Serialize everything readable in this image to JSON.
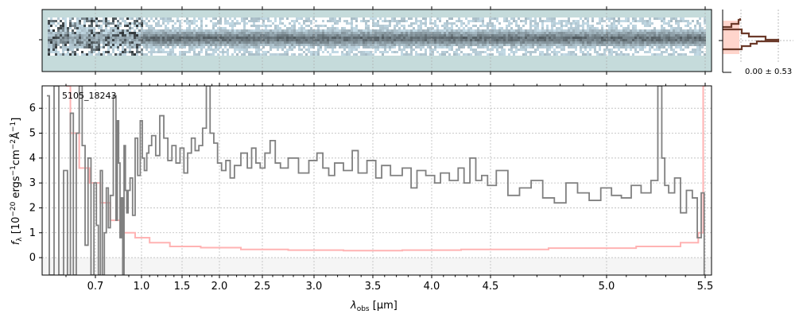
{
  "chart_data": {
    "type": "line",
    "object_label": "5105_18243",
    "xlabel": "λobs [μm]",
    "xlabel_main": "λ",
    "xlabel_sub": "obs",
    "xlabel_unit": " [μm]",
    "ylabel": "fλ [10^-20 ergs^-1 cm^-2 Å^-1]",
    "xlim": [
      0.55,
      5.52
    ],
    "ylim": [
      -0.7,
      6.9
    ],
    "grid": true,
    "x_ticks": [
      0.7,
      1.0,
      1.5,
      2.0,
      2.5,
      3.0,
      3.5,
      4.0,
      4.5,
      5.0,
      5.5
    ],
    "x_tick_labels": [
      "0.7",
      "1.0",
      "1.5",
      "2.0",
      "2.5",
      "3.0",
      "3.5",
      "4.0",
      "4.5",
      "5.0",
      "5.5"
    ],
    "y_ticks": [
      0,
      1,
      2,
      3,
      4,
      5,
      6
    ],
    "y_tick_labels": [
      "0",
      "1",
      "2",
      "3",
      "4",
      "5",
      "6"
    ],
    "series": [
      {
        "name": "flux",
        "color": "#808080",
        "step": true,
        "x": [
          0.56,
          0.57,
          0.58,
          0.59,
          0.6,
          0.61,
          0.62,
          0.63,
          0.64,
          0.65,
          0.66,
          0.67,
          0.68,
          0.69,
          0.7,
          0.71,
          0.72,
          0.73,
          0.74,
          0.75,
          0.76,
          0.77,
          0.78,
          0.8,
          0.81,
          0.82,
          0.83,
          0.84,
          0.85,
          0.86,
          0.87,
          0.88,
          0.89,
          0.9,
          0.92,
          0.94,
          0.96,
          0.98,
          1.0,
          1.02,
          1.05,
          1.08,
          1.1,
          1.15,
          1.2,
          1.25,
          1.3,
          1.35,
          1.4,
          1.45,
          1.5,
          1.55,
          1.6,
          1.65,
          1.7,
          1.75,
          1.8,
          1.85,
          1.9,
          1.95,
          2.0,
          2.05,
          2.1,
          2.15,
          2.2,
          2.3,
          2.35,
          2.4,
          2.45,
          2.5,
          2.55,
          2.6,
          2.65,
          2.7,
          2.8,
          2.9,
          3.0,
          3.05,
          3.1,
          3.15,
          3.2,
          3.3,
          3.35,
          3.4,
          3.5,
          3.55,
          3.6,
          3.7,
          3.8,
          3.85,
          3.9,
          4.0,
          4.05,
          4.1,
          4.2,
          4.25,
          4.3,
          4.35,
          4.4,
          4.45,
          4.5,
          4.55,
          4.6,
          4.65,
          4.7,
          4.75,
          4.8,
          4.85,
          4.9,
          4.95,
          5.0,
          5.05,
          5.1,
          5.15,
          5.2,
          5.25,
          5.27,
          5.29,
          5.3,
          5.33,
          5.36,
          5.39,
          5.42,
          5.45,
          5.47,
          5.49,
          5.5
        ],
        "y": [
          6.5,
          -0.7,
          6.9,
          -0.7,
          3.5,
          -0.7,
          5.8,
          -0.7,
          5.0,
          6.9,
          4.5,
          0.5,
          4.0,
          -0.7,
          3.0,
          1.3,
          -0.7,
          3.5,
          -0.7,
          1.0,
          2.8,
          1.2,
          2.5,
          6.5,
          1.5,
          5.5,
          3.8,
          0.8,
          2.4,
          -0.7,
          4.5,
          2.7,
          1.8,
          2.7,
          3.2,
          1.7,
          4.8,
          3.3,
          5.5,
          4.0,
          3.5,
          4.2,
          4.5,
          4.9,
          4.1,
          5.7,
          4.8,
          3.9,
          4.5,
          3.8,
          4.4,
          3.4,
          4.2,
          4.8,
          4.3,
          4.5,
          5.2,
          6.9,
          5.0,
          4.6,
          3.8,
          3.5,
          3.9,
          3.2,
          3.7,
          4.2,
          3.6,
          4.4,
          3.8,
          3.6,
          4.2,
          4.7,
          3.8,
          3.6,
          4.0,
          3.4,
          3.9,
          4.2,
          3.6,
          3.3,
          3.8,
          3.5,
          4.3,
          3.4,
          3.9,
          3.2,
          3.7,
          3.3,
          3.6,
          2.8,
          3.5,
          3.3,
          3.0,
          3.4,
          3.1,
          3.6,
          3.0,
          4.0,
          3.1,
          3.3,
          2.9,
          3.5,
          2.5,
          2.8,
          3.1,
          2.4,
          2.2,
          3.0,
          2.6,
          2.3,
          2.8,
          2.5,
          2.4,
          2.9,
          2.6,
          3.1,
          6.9,
          4.0,
          2.9,
          2.6,
          3.2,
          1.8,
          2.7,
          2.4,
          0.8,
          2.6,
          -0.7
        ]
      },
      {
        "name": "error",
        "color": "#ffb3b3",
        "step": true,
        "x": [
          0.6,
          0.63,
          0.66,
          0.7,
          0.75,
          0.8,
          0.9,
          1.0,
          1.2,
          1.5,
          2.0,
          2.5,
          3.0,
          3.5,
          4.0,
          4.5,
          5.0,
          5.3,
          5.45,
          5.48,
          5.5
        ],
        "y": [
          6.9,
          5.0,
          3.6,
          3.0,
          2.2,
          1.5,
          1.0,
          0.8,
          0.6,
          0.45,
          0.4,
          0.33,
          0.3,
          0.28,
          0.3,
          0.33,
          0.38,
          0.45,
          0.6,
          1.0,
          6.9
        ]
      }
    ],
    "histogram_panel": {
      "label": "0.00 ± 0.53",
      "color": "#6b3a2a",
      "fill": "#ffd5cc"
    },
    "spectrum_2d_panel": {
      "background": "#c5dbdb",
      "trace_color": "#3a3a5a"
    }
  }
}
